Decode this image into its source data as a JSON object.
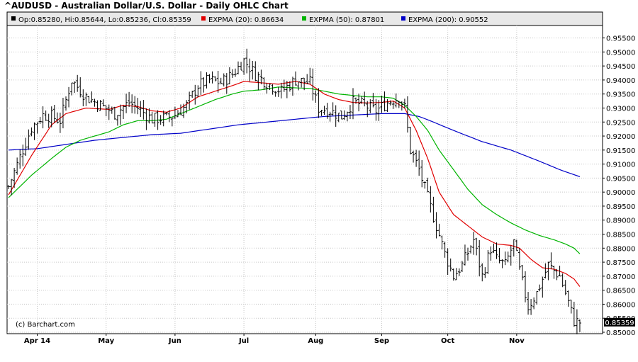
{
  "chart_data": {
    "type": "ohlc",
    "title": "^AUDUSD - Australian Dollar/U.S. Dollar - Daily OHLC Chart",
    "quote": {
      "open": "Op:0.85280",
      "high": "Hi:0.85644",
      "low": "Lo:0.85236",
      "close": "Cl:0.85359"
    },
    "legend": [
      {
        "label": "EXPMA (20): 0.86634",
        "color": "#e00000"
      },
      {
        "label": "EXPMA (50): 0.87801",
        "color": "#00b400"
      },
      {
        "label": "EXPMA (200): 0.90552",
        "color": "#0000c8"
      }
    ],
    "watermark": "(c) Barchart.com",
    "last_price": "0.85359",
    "y_ticks": [
      "0.85000",
      "0.85500",
      "0.86000",
      "0.86500",
      "0.87000",
      "0.87500",
      "0.88000",
      "0.88500",
      "0.89000",
      "0.89500",
      "0.90000",
      "0.90500",
      "0.91000",
      "0.91500",
      "0.92000",
      "0.92500",
      "0.93000",
      "0.93500",
      "0.94000",
      "0.94500",
      "0.95000",
      "0.95500"
    ],
    "ylim": [
      0.85,
      0.955
    ],
    "months": [
      {
        "label": "Apr 14",
        "index": 10
      },
      {
        "label": "May",
        "index": 34
      },
      {
        "label": "Jun",
        "index": 58
      },
      {
        "label": "Jul",
        "index": 82
      },
      {
        "label": "Aug",
        "index": 107
      },
      {
        "label": "Sep",
        "index": 130
      },
      {
        "label": "Oct",
        "index": 153
      },
      {
        "label": "Nov",
        "index": 177
      }
    ],
    "close_anchors": [
      [
        0,
        0.902
      ],
      [
        8,
        0.923
      ],
      [
        12,
        0.9275
      ],
      [
        15,
        0.927
      ],
      [
        18,
        0.9255
      ],
      [
        22,
        0.94
      ],
      [
        27,
        0.934
      ],
      [
        32,
        0.931
      ],
      [
        37,
        0.928
      ],
      [
        42,
        0.932
      ],
      [
        45,
        0.93
      ],
      [
        50,
        0.926
      ],
      [
        55,
        0.9265
      ],
      [
        58,
        0.9275
      ],
      [
        62,
        0.931
      ],
      [
        66,
        0.938
      ],
      [
        70,
        0.94
      ],
      [
        74,
        0.939
      ],
      [
        78,
        0.942
      ],
      [
        82,
        0.947
      ],
      [
        86,
        0.942
      ],
      [
        90,
        0.939
      ],
      [
        95,
        0.936
      ],
      [
        100,
        0.94
      ],
      [
        105,
        0.939
      ],
      [
        108,
        0.93
      ],
      [
        112,
        0.929
      ],
      [
        116,
        0.927
      ],
      [
        120,
        0.932
      ],
      [
        124,
        0.931
      ],
      [
        128,
        0.929
      ],
      [
        132,
        0.932
      ],
      [
        136,
        0.934
      ],
      [
        138,
        0.93
      ],
      [
        140,
        0.915
      ],
      [
        143,
        0.908
      ],
      [
        146,
        0.898
      ],
      [
        149,
        0.888
      ],
      [
        152,
        0.878
      ],
      [
        155,
        0.87
      ],
      [
        158,
        0.874
      ],
      [
        162,
        0.883
      ],
      [
        165,
        0.87
      ],
      [
        168,
        0.88
      ],
      [
        170,
        0.876
      ],
      [
        173,
        0.874
      ],
      [
        176,
        0.882
      ],
      [
        178,
        0.872
      ],
      [
        181,
        0.859
      ],
      [
        184,
        0.864
      ],
      [
        188,
        0.874
      ],
      [
        192,
        0.87
      ],
      [
        194,
        0.864
      ],
      [
        197,
        0.854
      ],
      [
        199,
        0.8536
      ]
    ],
    "ema20_anchors": [
      [
        0,
        0.899
      ],
      [
        8,
        0.913
      ],
      [
        15,
        0.924
      ],
      [
        20,
        0.928
      ],
      [
        27,
        0.93
      ],
      [
        35,
        0.9295
      ],
      [
        40,
        0.931
      ],
      [
        45,
        0.9305
      ],
      [
        50,
        0.929
      ],
      [
        55,
        0.9285
      ],
      [
        60,
        0.93
      ],
      [
        66,
        0.934
      ],
      [
        72,
        0.936
      ],
      [
        78,
        0.938
      ],
      [
        82,
        0.9395
      ],
      [
        88,
        0.939
      ],
      [
        94,
        0.9385
      ],
      [
        100,
        0.9395
      ],
      [
        105,
        0.9385
      ],
      [
        110,
        0.935
      ],
      [
        115,
        0.933
      ],
      [
        120,
        0.932
      ],
      [
        125,
        0.9318
      ],
      [
        130,
        0.932
      ],
      [
        134,
        0.9325
      ],
      [
        138,
        0.93
      ],
      [
        142,
        0.922
      ],
      [
        146,
        0.912
      ],
      [
        150,
        0.9
      ],
      [
        155,
        0.892
      ],
      [
        160,
        0.888
      ],
      [
        165,
        0.884
      ],
      [
        170,
        0.8815
      ],
      [
        175,
        0.881
      ],
      [
        178,
        0.88
      ],
      [
        182,
        0.876
      ],
      [
        186,
        0.873
      ],
      [
        190,
        0.8725
      ],
      [
        194,
        0.871
      ],
      [
        197,
        0.869
      ],
      [
        199,
        0.8663
      ]
    ],
    "ema50_anchors": [
      [
        0,
        0.898
      ],
      [
        8,
        0.906
      ],
      [
        15,
        0.912
      ],
      [
        20,
        0.916
      ],
      [
        25,
        0.9185
      ],
      [
        30,
        0.92
      ],
      [
        35,
        0.9215
      ],
      [
        40,
        0.924
      ],
      [
        45,
        0.9255
      ],
      [
        50,
        0.9255
      ],
      [
        55,
        0.926
      ],
      [
        60,
        0.928
      ],
      [
        66,
        0.9305
      ],
      [
        72,
        0.933
      ],
      [
        78,
        0.935
      ],
      [
        82,
        0.936
      ],
      [
        88,
        0.9365
      ],
      [
        94,
        0.9375
      ],
      [
        100,
        0.9372
      ],
      [
        105,
        0.937
      ],
      [
        110,
        0.936
      ],
      [
        115,
        0.935
      ],
      [
        120,
        0.9345
      ],
      [
        125,
        0.934
      ],
      [
        130,
        0.934
      ],
      [
        134,
        0.9335
      ],
      [
        138,
        0.931
      ],
      [
        142,
        0.927
      ],
      [
        146,
        0.922
      ],
      [
        150,
        0.915
      ],
      [
        155,
        0.908
      ],
      [
        160,
        0.901
      ],
      [
        165,
        0.8955
      ],
      [
        170,
        0.892
      ],
      [
        175,
        0.889
      ],
      [
        180,
        0.8865
      ],
      [
        185,
        0.8845
      ],
      [
        190,
        0.883
      ],
      [
        194,
        0.8815
      ],
      [
        197,
        0.88
      ],
      [
        199,
        0.878
      ]
    ],
    "ema200_anchors": [
      [
        0,
        0.915
      ],
      [
        10,
        0.9155
      ],
      [
        20,
        0.917
      ],
      [
        30,
        0.9185
      ],
      [
        40,
        0.9195
      ],
      [
        50,
        0.9205
      ],
      [
        60,
        0.921
      ],
      [
        70,
        0.9225
      ],
      [
        80,
        0.924
      ],
      [
        90,
        0.925
      ],
      [
        100,
        0.926
      ],
      [
        110,
        0.927
      ],
      [
        120,
        0.9275
      ],
      [
        130,
        0.928
      ],
      [
        138,
        0.928
      ],
      [
        143,
        0.927
      ],
      [
        148,
        0.925
      ],
      [
        155,
        0.922
      ],
      [
        165,
        0.918
      ],
      [
        175,
        0.915
      ],
      [
        185,
        0.911
      ],
      [
        192,
        0.908
      ],
      [
        199,
        0.9055
      ]
    ]
  }
}
